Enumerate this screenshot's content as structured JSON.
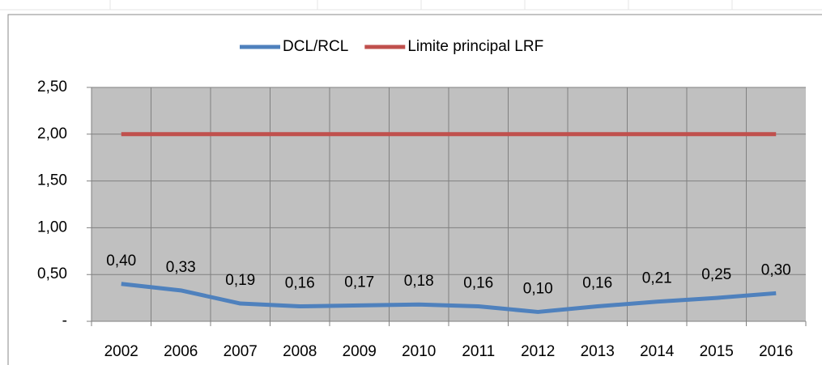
{
  "chart_data": {
    "type": "line",
    "categories": [
      "2002",
      "2006",
      "2007",
      "2008",
      "2009",
      "2010",
      "2011",
      "2012",
      "2013",
      "2014",
      "2015",
      "2016"
    ],
    "series": [
      {
        "name": "DCL/RCL",
        "color": "#4f81bd",
        "values": [
          0.4,
          0.33,
          0.19,
          0.16,
          0.17,
          0.18,
          0.16,
          0.1,
          0.16,
          0.21,
          0.25,
          0.3
        ],
        "value_labels": [
          "0,40",
          "0,33",
          "0,19",
          "0,16",
          "0,17",
          "0,18",
          "0,16",
          "0,10",
          "0,16",
          "0,21",
          "0,25",
          "0,30"
        ]
      },
      {
        "name": "Limite principal LRF",
        "color": "#c0504d",
        "values": [
          2,
          2,
          2,
          2,
          2,
          2,
          2,
          2,
          2,
          2,
          2,
          2
        ]
      }
    ],
    "ylim": [
      0,
      2.5
    ],
    "yticks": [
      {
        "value": 0,
        "label": "-"
      },
      {
        "value": 0.5,
        "label": "0,50"
      },
      {
        "value": 1,
        "label": "1,00"
      },
      {
        "value": 1.5,
        "label": "1,50"
      },
      {
        "value": 2,
        "label": "2,00"
      },
      {
        "value": 2.5,
        "label": "2,50"
      }
    ],
    "grid": true,
    "legend": "top",
    "plot_background": "#c0c0c0"
  }
}
